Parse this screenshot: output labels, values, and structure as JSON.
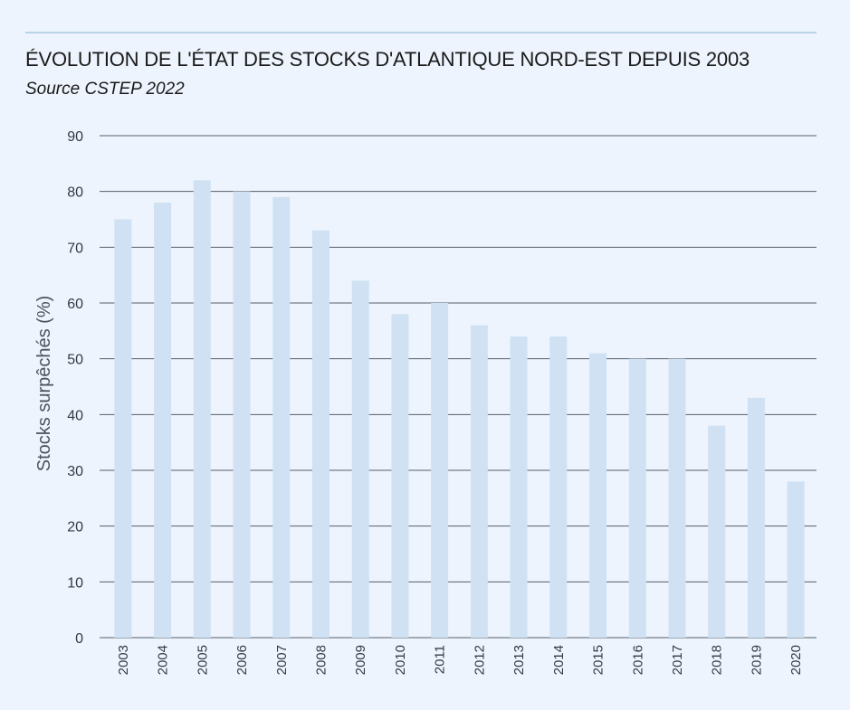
{
  "header": {
    "title": "ÉVOLUTION DE L'ÉTAT DES STOCKS D'ATLANTIQUE NORD-EST DEPUIS 2003",
    "subtitle": "Source CSTEP 2022"
  },
  "colors": {
    "background": "#edf4fd",
    "bar": "#cfe1f2",
    "gridline": "#555e6b",
    "top_rule": "#b9d3e8"
  },
  "chart_data": {
    "type": "bar",
    "title": "ÉVOLUTION DE L'ÉTAT DES STOCKS D'ATLANTIQUE NORD-EST DEPUIS 2003",
    "subtitle": "Source CSTEP 2022",
    "xlabel": "",
    "ylabel": "Stocks surpêchés (%)",
    "categories": [
      "2003",
      "2004",
      "2005",
      "2006",
      "2007",
      "2008",
      "2009",
      "2010",
      "2011",
      "2012",
      "2013",
      "2014",
      "2015",
      "2016",
      "2017",
      "2018",
      "2019",
      "2020"
    ],
    "values": [
      75,
      78,
      82,
      80,
      79,
      73,
      64,
      58,
      60,
      56,
      54,
      54,
      51,
      50,
      50,
      38,
      43,
      28
    ],
    "ylim": [
      0,
      90
    ],
    "yticks": [
      0,
      10,
      20,
      30,
      40,
      50,
      60,
      70,
      80,
      90
    ],
    "grid": true,
    "legend": "none"
  }
}
